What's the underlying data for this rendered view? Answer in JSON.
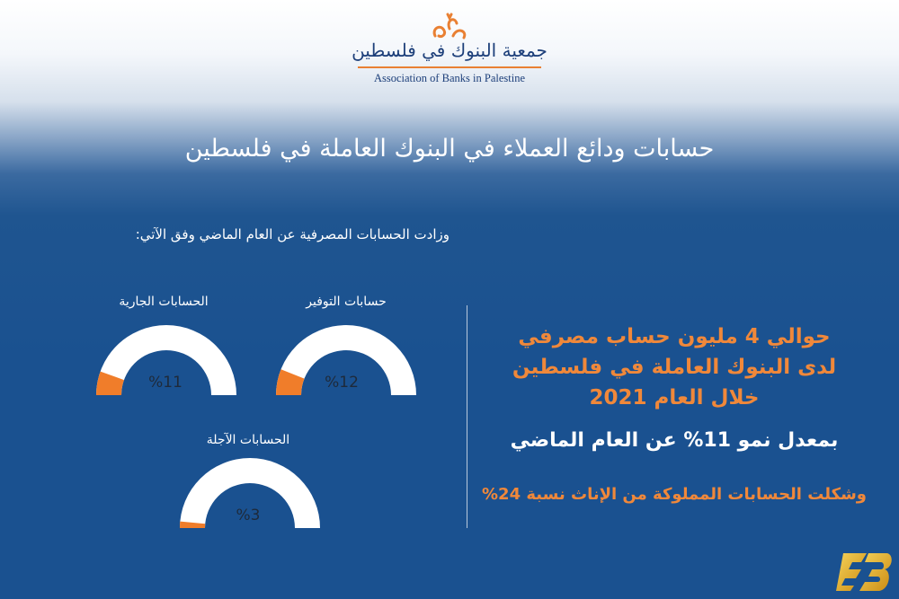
{
  "logo": {
    "name_ar": "جمعية البنوك في فلسطين",
    "name_en": "Association of Banks in Palestine",
    "icon": "abp-logo-icon",
    "accent": "#e98033"
  },
  "title": "حسابات ودائع العملاء في البنوك العاملة في فلسطين",
  "subtitle": "وزادت الحسابات المصرفية عن العام الماضي وفق الآتي:",
  "gauges": [
    {
      "label": "حسابات التوفير",
      "value_text": "%12",
      "value": 12
    },
    {
      "label": "الحسابات الجارية",
      "value_text": "%11",
      "value": 11
    },
    {
      "label": "الحسابات الآجلة",
      "value_text": "%3",
      "value": 3
    }
  ],
  "stats": {
    "headline_line1": "حوالي 4 مليون حساب مصرفي",
    "headline_line2": "لدى البنوك العاملة في فلسطين",
    "headline_line3": "خلال العام 2021",
    "growth": "بمعدل نمو 11% عن العام الماضي",
    "female_share": "وشكلت الحسابات المملوكة من الإناث نسبة 24%"
  },
  "colors": {
    "background": "#1a5190",
    "gauge_track": "#ffffff",
    "gauge_fill": "#f07d2a",
    "highlight": "#f0883a"
  },
  "corner_logo": {
    "icon": "news-site-logo-icon"
  }
}
